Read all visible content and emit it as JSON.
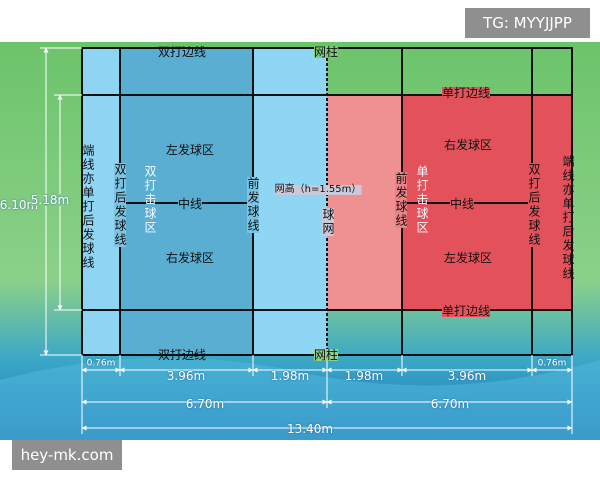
{
  "watermark": "TG: MYYJJPP",
  "source": "hey-mk.com",
  "court": {
    "top_doubles_sideline": "双打边线",
    "bottom_doubles_sideline": "双打边线",
    "top_post": "网柱",
    "bottom_post": "网柱",
    "top_singles_sideline": "单打边线",
    "bottom_singles_sideline": "单打边线",
    "left_end_line": "端线亦单打后发球线",
    "left_doubles_long_service_line": "双打后发球线",
    "left_doubles_court": "双打击球区",
    "left_left_service_court": "左发球区",
    "left_center_line": "中线",
    "left_right_service_court": "右发球区",
    "left_short_service_line": "前发球线",
    "net_height": "网高（h=1.55m）",
    "net": "球网",
    "right_short_service_line": "前发球线",
    "right_singles_court": "单打击球区",
    "right_right_service_court": "右发球区",
    "right_center_line": "中线",
    "right_left_service_court": "左发球区",
    "right_doubles_long_service_line": "双打后发球线",
    "right_end_line": "端线亦单打后发球线"
  },
  "dimensions": {
    "total_width": "6.10m",
    "singles_width": "5.18m",
    "left_back": "0.76m",
    "left_service": "3.96m",
    "left_front": "1.98m",
    "right_front": "1.98m",
    "right_service": "3.96m",
    "right_back": "0.76m",
    "left_half": "6.70m",
    "right_half": "6.70m",
    "total_length": "13.40m"
  }
}
